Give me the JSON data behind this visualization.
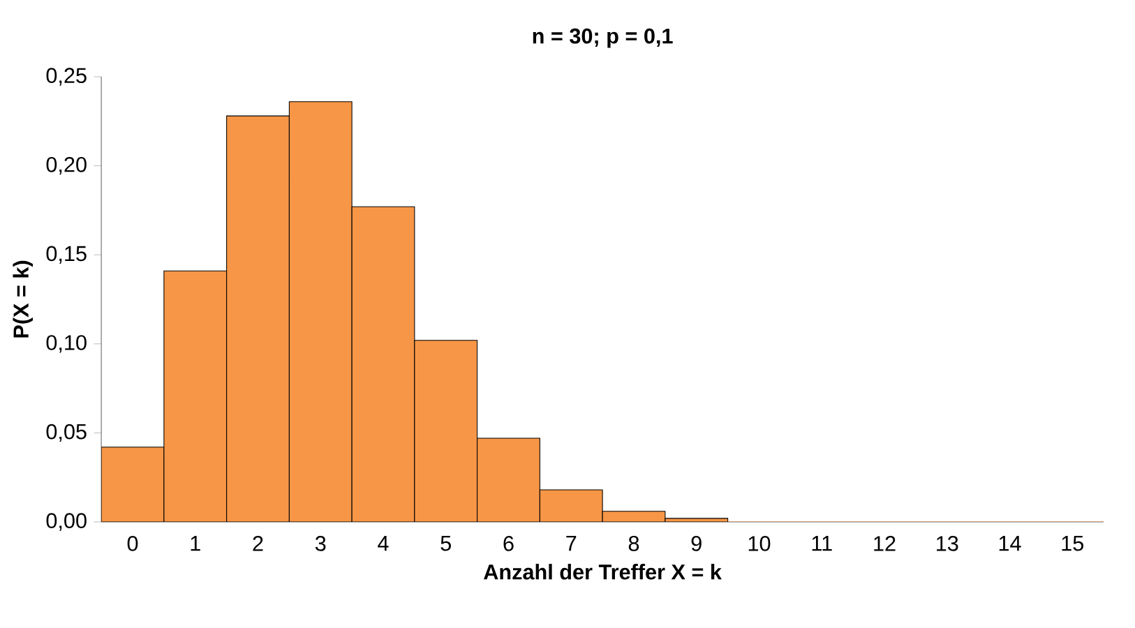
{
  "chart_data": {
    "type": "bar",
    "title": "n = 30; p = 0,1",
    "xlabel": "Anzahl der Treffer X = k",
    "ylabel": "P(X = k)",
    "categories": [
      "0",
      "1",
      "2",
      "3",
      "4",
      "5",
      "6",
      "7",
      "8",
      "9",
      "10",
      "11",
      "12",
      "13",
      "14",
      "15"
    ],
    "values": [
      0.042,
      0.141,
      0.228,
      0.236,
      0.177,
      0.102,
      0.047,
      0.018,
      0.006,
      0.002,
      0,
      0,
      0,
      0,
      0,
      0
    ],
    "color": "#f79646",
    "ylim": [
      0,
      0.25
    ],
    "yticks": [
      {
        "value": 0,
        "label": "0,00"
      },
      {
        "value": 0.05,
        "label": "0,05"
      },
      {
        "value": 0.1,
        "label": "0,10"
      },
      {
        "value": 0.15,
        "label": "0,15"
      },
      {
        "value": 0.2,
        "label": "0,20"
      },
      {
        "value": 0.25,
        "label": "0,25"
      }
    ],
    "grid": false
  }
}
